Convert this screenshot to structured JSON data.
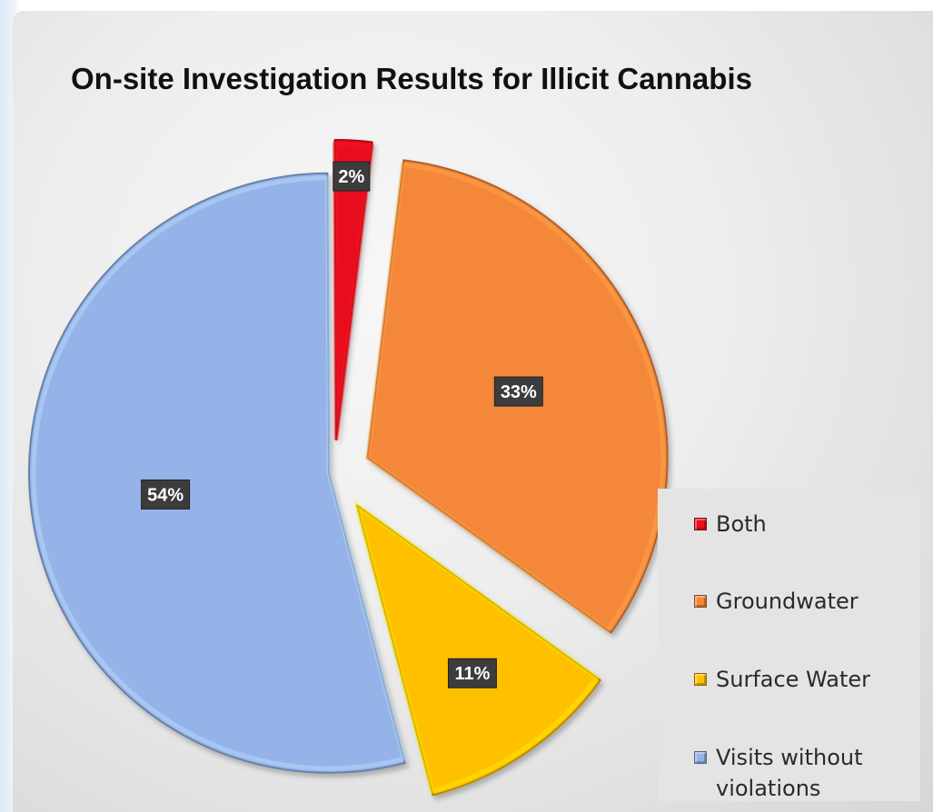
{
  "chart_data": {
    "type": "pie",
    "title": "On-site Investigation Results for Illicit Cannabis",
    "slices": [
      {
        "label": "Both",
        "value": 2,
        "data_label": "2%",
        "color": "#e8101c"
      },
      {
        "label": "Groundwater",
        "value": 33,
        "data_label": "33%",
        "color": "#f5873a"
      },
      {
        "label": "Surface Water",
        "value": 11,
        "data_label": "11%",
        "color": "#ffc000"
      },
      {
        "label": "Visits without violations",
        "value": 54,
        "data_label": "54%",
        "color": "#95b3e8"
      }
    ],
    "legend_placement": "bottom-right",
    "exploded": true
  }
}
